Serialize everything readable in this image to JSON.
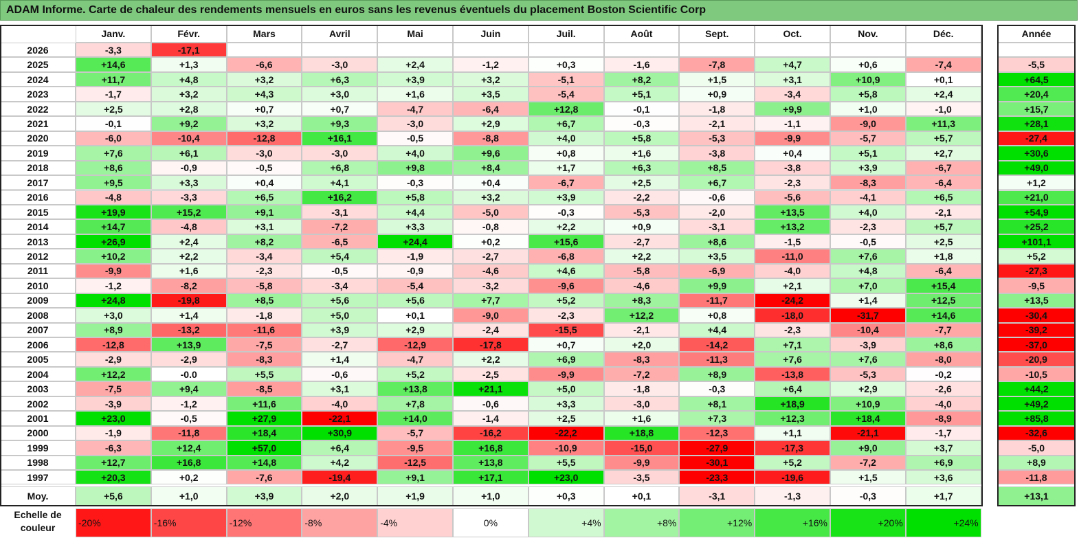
{
  "title": "ADAM Informe. Carte de chaleur des rendements mensuels en euros sans les revenus éventuels du placement Boston Scientific Corp",
  "chart_data": {
    "type": "heatmap",
    "months": [
      "Janv.",
      "Févr.",
      "Mars",
      "Avril",
      "Mai",
      "Juin",
      "Juil.",
      "Août",
      "Sept.",
      "Oct.",
      "Nov.",
      "Déc."
    ],
    "year_header": "Année",
    "avg_label": "Moy.",
    "rows": [
      {
        "year": "2026",
        "m": [
          -3.3,
          -17.1,
          null,
          null,
          null,
          null,
          null,
          null,
          null,
          null,
          null,
          null
        ],
        "annual": null
      },
      {
        "year": "2025",
        "m": [
          14.6,
          1.3,
          -6.6,
          -3.0,
          2.4,
          -1.2,
          0.3,
          -1.6,
          -7.8,
          4.7,
          0.6,
          -7.4
        ],
        "annual": -5.5
      },
      {
        "year": "2024",
        "m": [
          11.7,
          4.8,
          3.2,
          6.3,
          3.9,
          3.2,
          -5.1,
          8.2,
          1.5,
          3.1,
          10.9,
          0.1
        ],
        "annual": 64.5
      },
      {
        "year": "2023",
        "m": [
          -1.7,
          3.2,
          4.3,
          3.0,
          1.6,
          3.5,
          -5.4,
          5.1,
          0.9,
          -3.4,
          5.8,
          2.4
        ],
        "annual": 20.4
      },
      {
        "year": "2022",
        "m": [
          2.5,
          2.8,
          0.7,
          0.7,
          -4.7,
          -6.4,
          12.8,
          -0.1,
          -1.8,
          9.9,
          1.0,
          -1.0
        ],
        "annual": 15.7
      },
      {
        "year": "2021",
        "m": [
          -0.1,
          9.2,
          3.2,
          9.3,
          -3.0,
          2.9,
          6.7,
          -0.3,
          -2.1,
          -1.1,
          -9.0,
          11.3
        ],
        "annual": 28.1
      },
      {
        "year": "2020",
        "m": [
          -6.0,
          -10.4,
          -12.8,
          16.1,
          -0.5,
          -8.8,
          4.0,
          5.8,
          -5.3,
          -9.9,
          -5.7,
          5.7
        ],
        "annual": -27.4
      },
      {
        "year": "2019",
        "m": [
          7.6,
          6.1,
          -3.0,
          -3.0,
          4.0,
          9.6,
          0.8,
          1.6,
          -3.8,
          0.4,
          5.1,
          2.7
        ],
        "annual": 30.6
      },
      {
        "year": "2018",
        "m": [
          8.6,
          -0.9,
          -0.5,
          6.8,
          9.8,
          8.4,
          1.7,
          6.3,
          8.5,
          -3.8,
          3.9,
          -6.7
        ],
        "annual": 49.0
      },
      {
        "year": "2017",
        "m": [
          9.5,
          3.3,
          0.4,
          4.1,
          -0.3,
          0.4,
          -6.7,
          2.5,
          6.7,
          -2.3,
          -8.3,
          -6.4
        ],
        "annual": 1.2
      },
      {
        "year": "2016",
        "m": [
          -4.8,
          -3.3,
          6.5,
          16.2,
          5.8,
          3.2,
          3.9,
          -2.2,
          -0.6,
          -5.6,
          -4.1,
          6.5
        ],
        "annual": 21.0
      },
      {
        "year": "2015",
        "m": [
          19.9,
          15.2,
          9.1,
          -3.1,
          4.4,
          -5.0,
          -0.3,
          -5.3,
          -2.0,
          13.5,
          4.0,
          -2.1
        ],
        "annual": 54.9
      },
      {
        "year": "2014",
        "m": [
          14.7,
          -4.8,
          3.1,
          -7.2,
          3.3,
          -0.8,
          2.2,
          0.9,
          -3.1,
          13.2,
          -2.3,
          5.7
        ],
        "annual": 25.2
      },
      {
        "year": "2013",
        "m": [
          26.9,
          2.4,
          8.2,
          -6.5,
          24.4,
          0.2,
          15.6,
          -2.7,
          8.6,
          -1.5,
          -0.5,
          2.5
        ],
        "annual": 101.1
      },
      {
        "year": "2012",
        "m": [
          10.2,
          2.2,
          -3.4,
          5.4,
          -1.9,
          -2.7,
          -6.8,
          2.2,
          3.5,
          -11.0,
          7.6,
          1.8
        ],
        "annual": 5.2
      },
      {
        "year": "2011",
        "m": [
          -9.9,
          1.6,
          -2.3,
          -0.5,
          -0.9,
          -4.6,
          4.6,
          -5.8,
          -6.9,
          -4.0,
          4.8,
          -6.4
        ],
        "annual": -27.3
      },
      {
        "year": "2010",
        "m": [
          -1.2,
          -8.2,
          -5.8,
          -3.4,
          -5.4,
          -3.2,
          -9.6,
          -4.6,
          9.9,
          2.1,
          7.0,
          15.4
        ],
        "annual": -9.5
      },
      {
        "year": "2009",
        "m": [
          24.8,
          -19.8,
          8.5,
          5.6,
          5.6,
          7.7,
          5.2,
          8.3,
          -11.7,
          -24.2,
          1.4,
          12.5
        ],
        "annual": 13.5
      },
      {
        "year": "2008",
        "m": [
          3.0,
          1.4,
          -1.8,
          5.0,
          0.1,
          -9.0,
          -2.3,
          12.2,
          0.8,
          -18.0,
          -31.7,
          14.6
        ],
        "annual": -30.4
      },
      {
        "year": "2007",
        "m": [
          8.9,
          -13.2,
          -11.6,
          3.9,
          2.9,
          -2.4,
          -15.5,
          -2.1,
          4.4,
          -2.3,
          -10.4,
          -7.7
        ],
        "annual": -39.2
      },
      {
        "year": "2006",
        "m": [
          -12.8,
          13.9,
          -7.5,
          -2.7,
          -12.9,
          -17.8,
          0.7,
          2.0,
          -14.2,
          7.1,
          -3.9,
          8.6
        ],
        "annual": -37.0
      },
      {
        "year": "2005",
        "m": [
          -2.9,
          -2.9,
          -8.3,
          1.4,
          -4.7,
          2.2,
          6.9,
          -8.3,
          -11.3,
          7.6,
          7.6,
          -8.0
        ],
        "annual": -20.9
      },
      {
        "year": "2004",
        "m": [
          12.2,
          "-0.0",
          5.5,
          -0.6,
          5.2,
          -2.5,
          -9.9,
          -7.2,
          8.9,
          -13.8,
          -5.3,
          -0.2
        ],
        "annual": -10.5
      },
      {
        "year": "2003",
        "m": [
          -7.5,
          9.4,
          -8.5,
          3.1,
          13.8,
          21.1,
          5.0,
          -1.8,
          -0.3,
          6.4,
          2.9,
          -2.6
        ],
        "annual": 44.2
      },
      {
        "year": "2002",
        "m": [
          -3.9,
          -1.2,
          11.6,
          -4.0,
          7.8,
          -0.6,
          3.3,
          -3.0,
          8.1,
          18.9,
          10.9,
          -4.0
        ],
        "annual": 49.2
      },
      {
        "year": "2001",
        "m": [
          23.0,
          -0.5,
          27.9,
          -22.1,
          14.0,
          -1.4,
          2.5,
          1.6,
          7.3,
          12.3,
          18.4,
          -8.9
        ],
        "annual": 85.8
      },
      {
        "year": "2000",
        "m": [
          -1.9,
          -11.8,
          18.4,
          30.9,
          -5.7,
          -16.2,
          -22.2,
          18.8,
          -12.3,
          1.1,
          -21.1,
          -1.7
        ],
        "annual": -32.6
      },
      {
        "year": "1999",
        "m": [
          -6.3,
          12.4,
          57.0,
          6.4,
          -9.5,
          16.8,
          -10.9,
          -15.0,
          -27.9,
          -17.3,
          9.0,
          3.7
        ],
        "annual": -5.0
      },
      {
        "year": "1998",
        "m": [
          12.7,
          16.8,
          14.8,
          4.2,
          -12.5,
          13.8,
          5.5,
          -9.9,
          -30.1,
          5.2,
          -7.2,
          6.9
        ],
        "annual": 8.9
      },
      {
        "year": "1997",
        "m": [
          20.3,
          0.2,
          -7.6,
          -19.4,
          9.1,
          17.1,
          23.0,
          -3.5,
          -23.3,
          -19.6,
          1.5,
          3.6
        ],
        "annual": -11.8
      }
    ],
    "avg": {
      "m": [
        5.6,
        1.0,
        3.9,
        2.0,
        1.9,
        1.0,
        0.3,
        0.1,
        -3.1,
        -1.3,
        -0.3,
        1.7
      ],
      "annual": 13.1
    },
    "scale_label_line1": "Echelle de",
    "scale_label_line2": "couleur",
    "scale": [
      {
        "label": "-20%",
        "v": -20
      },
      {
        "label": "-16%",
        "v": -16
      },
      {
        "label": "-12%",
        "v": -12
      },
      {
        "label": "-8%",
        "v": -8
      },
      {
        "label": "-4%",
        "v": -4
      },
      {
        "label": "0%",
        "v": 0
      },
      {
        "label": "+4%",
        "v": 4
      },
      {
        "label": "+8%",
        "v": 8
      },
      {
        "label": "+12%",
        "v": 12
      },
      {
        "label": "+16%",
        "v": 16
      },
      {
        "label": "+20%",
        "v": 20
      },
      {
        "label": "+24%",
        "v": 24
      }
    ],
    "colors": {
      "negative_max": "#ff0000",
      "neutral": "#ffffff",
      "positive_max": "#00e000"
    }
  }
}
